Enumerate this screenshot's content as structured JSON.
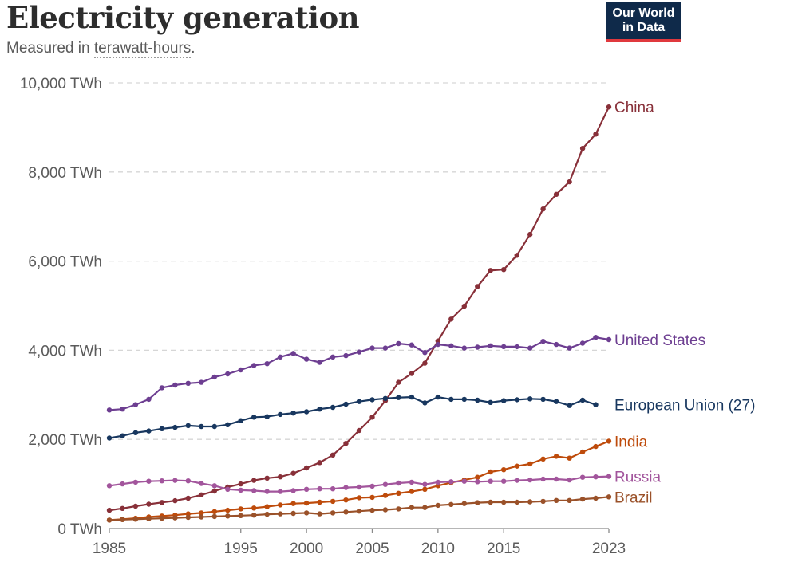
{
  "header": {
    "title": "Electricity generation",
    "subtitle_prefix": "Measured in ",
    "subtitle_link": "terawatt-hours",
    "subtitle_suffix": ".",
    "logo_line1": "Our World",
    "logo_line2": "in Data"
  },
  "chart_data": {
    "type": "line",
    "title": "Electricity generation",
    "subtitle": "Measured in terawatt-hours.",
    "xlabel": "",
    "ylabel": "",
    "xlim": [
      1985,
      2023
    ],
    "ylim": [
      0,
      10000
    ],
    "x_ticks": [
      1985,
      1995,
      2000,
      2005,
      2010,
      2015,
      2023
    ],
    "y_ticks": [
      0,
      2000,
      4000,
      6000,
      8000,
      10000
    ],
    "y_tick_labels": [
      "0 TWh",
      "2,000 TWh",
      "4,000 TWh",
      "6,000 TWh",
      "8,000 TWh",
      "10,000 TWh"
    ],
    "grid": "horizontal dashed",
    "x": [
      1985,
      1986,
      1987,
      1988,
      1989,
      1990,
      1991,
      1992,
      1993,
      1994,
      1995,
      1996,
      1997,
      1998,
      1999,
      2000,
      2001,
      2002,
      2003,
      2004,
      2005,
      2006,
      2007,
      2008,
      2009,
      2010,
      2011,
      2012,
      2013,
      2014,
      2015,
      2016,
      2017,
      2018,
      2019,
      2020,
      2021,
      2022,
      2023
    ],
    "series": [
      {
        "name": "China",
        "label": "China",
        "color": "#883039",
        "values": [
          410,
          450,
          500,
          545,
          585,
          625,
          680,
          755,
          840,
          930,
          1000,
          1080,
          1130,
          1160,
          1240,
          1360,
          1480,
          1650,
          1910,
          2200,
          2500,
          2870,
          3280,
          3480,
          3710,
          4210,
          4700,
          4990,
          5430,
          5790,
          5810,
          6130,
          6600,
          7170,
          7500,
          7780,
          8530,
          8850,
          9460
        ]
      },
      {
        "name": "United States",
        "label": "United States",
        "color": "#6d3e91",
        "values": [
          2660,
          2680,
          2780,
          2900,
          3160,
          3220,
          3260,
          3280,
          3400,
          3470,
          3560,
          3660,
          3700,
          3850,
          3930,
          3800,
          3730,
          3850,
          3880,
          3960,
          4050,
          4050,
          4150,
          4120,
          3950,
          4130,
          4100,
          4050,
          4070,
          4100,
          4080,
          4080,
          4050,
          4200,
          4130,
          4050,
          4160,
          4290,
          4240
        ]
      },
      {
        "name": "European Union (27)",
        "label": "European Union (27)",
        "color": "#18375f",
        "values": [
          2030,
          2080,
          2150,
          2190,
          2240,
          2270,
          2310,
          2290,
          2290,
          2330,
          2420,
          2500,
          2510,
          2560,
          2590,
          2620,
          2680,
          2720,
          2790,
          2850,
          2890,
          2920,
          2940,
          2950,
          2820,
          2950,
          2900,
          2900,
          2880,
          2830,
          2870,
          2890,
          2910,
          2900,
          2850,
          2760,
          2880,
          2780,
          null
        ]
      },
      {
        "name": "India",
        "label": "India",
        "color": "#be4b0b",
        "values": [
          190,
          210,
          230,
          260,
          280,
          300,
          330,
          350,
          380,
          410,
          440,
          460,
          490,
          530,
          560,
          570,
          590,
          610,
          640,
          690,
          700,
          740,
          790,
          830,
          880,
          960,
          1030,
          1090,
          1150,
          1270,
          1320,
          1400,
          1450,
          1560,
          1620,
          1580,
          1720,
          1840,
          1960
        ]
      },
      {
        "name": "Russia",
        "label": "Russia",
        "color": "#a2559c",
        "values": [
          960,
          1000,
          1040,
          1060,
          1070,
          1080,
          1070,
          1010,
          960,
          880,
          860,
          850,
          830,
          830,
          850,
          880,
          890,
          890,
          920,
          930,
          950,
          990,
          1020,
          1040,
          990,
          1040,
          1050,
          1060,
          1050,
          1060,
          1060,
          1080,
          1090,
          1110,
          1110,
          1090,
          1150,
          1160,
          1170
        ]
      },
      {
        "name": "Brazil",
        "label": "Brazil",
        "color": "#9a5129",
        "values": [
          190,
          200,
          210,
          220,
          230,
          240,
          250,
          260,
          270,
          280,
          290,
          300,
          320,
          330,
          340,
          350,
          330,
          350,
          370,
          390,
          410,
          420,
          440,
          470,
          470,
          520,
          540,
          560,
          580,
          590,
          590,
          590,
          600,
          610,
          630,
          630,
          660,
          680,
          710
        ]
      }
    ]
  }
}
